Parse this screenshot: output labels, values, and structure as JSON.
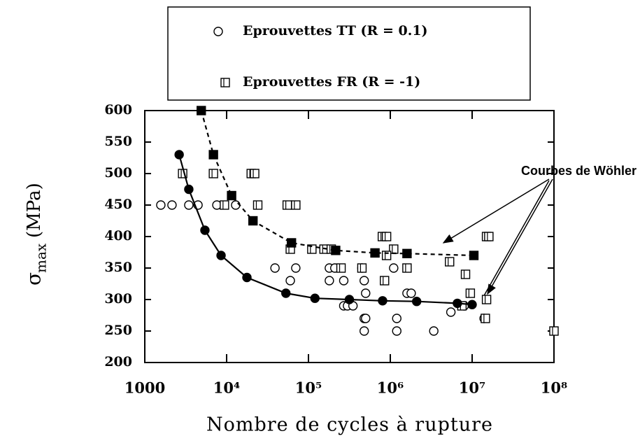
{
  "chart_data": {
    "type": "scatter",
    "xscale": "log",
    "xlabel": "Nombre de cycles à rupture",
    "ylabel": "σ",
    "ylabel_sub": "max",
    "ylabel_unit": "(MPa)",
    "annotation": "Courbes de Wöhler",
    "xlim": [
      1000,
      100000000
    ],
    "xticks": [
      1000,
      {
        "value": 10000,
        "label": "10⁴"
      },
      {
        "value": 100000,
        "label": "10⁵"
      },
      {
        "value": 1000000,
        "label": "10⁶"
      },
      {
        "value": 10000000,
        "label": "10⁷"
      },
      {
        "value": 100000000,
        "label": "10⁸"
      }
    ],
    "ylim": [
      200,
      600
    ],
    "yticks": [
      200,
      250,
      300,
      350,
      400,
      450,
      500,
      550,
      600
    ],
    "grid": false,
    "series": [
      {
        "name": "Eprouvettes TT (R = 0.1)",
        "color": "#000000",
        "marker": "circle",
        "filled": false,
        "x": [
          1570,
          2150,
          3450,
          4470,
          7600,
          12900,
          39000,
          70000,
          180000,
          210000,
          450000,
          1100000,
          60000,
          180000,
          270000,
          480000,
          270000,
          300000,
          350000,
          500000,
          1600000,
          1800000,
          5500000,
          8000000,
          480000,
          500000,
          1200000,
          14000000,
          480000,
          1200000,
          3400000
        ],
        "values": [
          450,
          450,
          450,
          450,
          450,
          450,
          350,
          350,
          350,
          350,
          350,
          350,
          330,
          330,
          330,
          330,
          290,
          290,
          290,
          310,
          310,
          310,
          280,
          290,
          270,
          270,
          270,
          270,
          250,
          250,
          250
        ]
      },
      {
        "name": "Eprouvettes FR (R = -1)",
        "color": "#000000",
        "marker": "square",
        "filled": false,
        "x": [
          2900,
          6900,
          20000,
          22000,
          9400,
          24000,
          55000,
          70000,
          60000,
          110000,
          155000,
          190000,
          800000,
          900000,
          1100000,
          900000,
          250000,
          450000,
          1600000,
          850000,
          5300000,
          8300000,
          9500000,
          15000000,
          7500000,
          15000000,
          16000000,
          14500000,
          100000000
        ],
        "values": [
          500,
          500,
          500,
          500,
          450,
          450,
          450,
          450,
          380,
          380,
          380,
          380,
          400,
          400,
          380,
          370,
          350,
          350,
          350,
          330,
          360,
          340,
          310,
          300,
          290,
          400,
          400,
          270,
          250
        ]
      },
      {
        "color": "#000000",
        "marker": "circle",
        "filled": true,
        "line": "solid",
        "x": [
          2630,
          3450,
          5430,
          8550,
          17700,
          53000,
          120000,
          316000,
          805000,
          2100000,
          6600000,
          10000000
        ],
        "values": [
          530,
          475,
          410,
          370,
          335,
          310,
          302,
          300,
          298,
          297,
          294,
          292
        ]
      },
      {
        "color": "#000000",
        "marker": "square",
        "filled": true,
        "line": "dashed",
        "x": [
          4900,
          6900,
          11500,
          21000,
          62000,
          215000,
          650000,
          1600000,
          10500000
        ],
        "values": [
          600,
          530,
          465,
          425,
          390,
          378,
          374,
          373,
          370
        ]
      }
    ]
  }
}
